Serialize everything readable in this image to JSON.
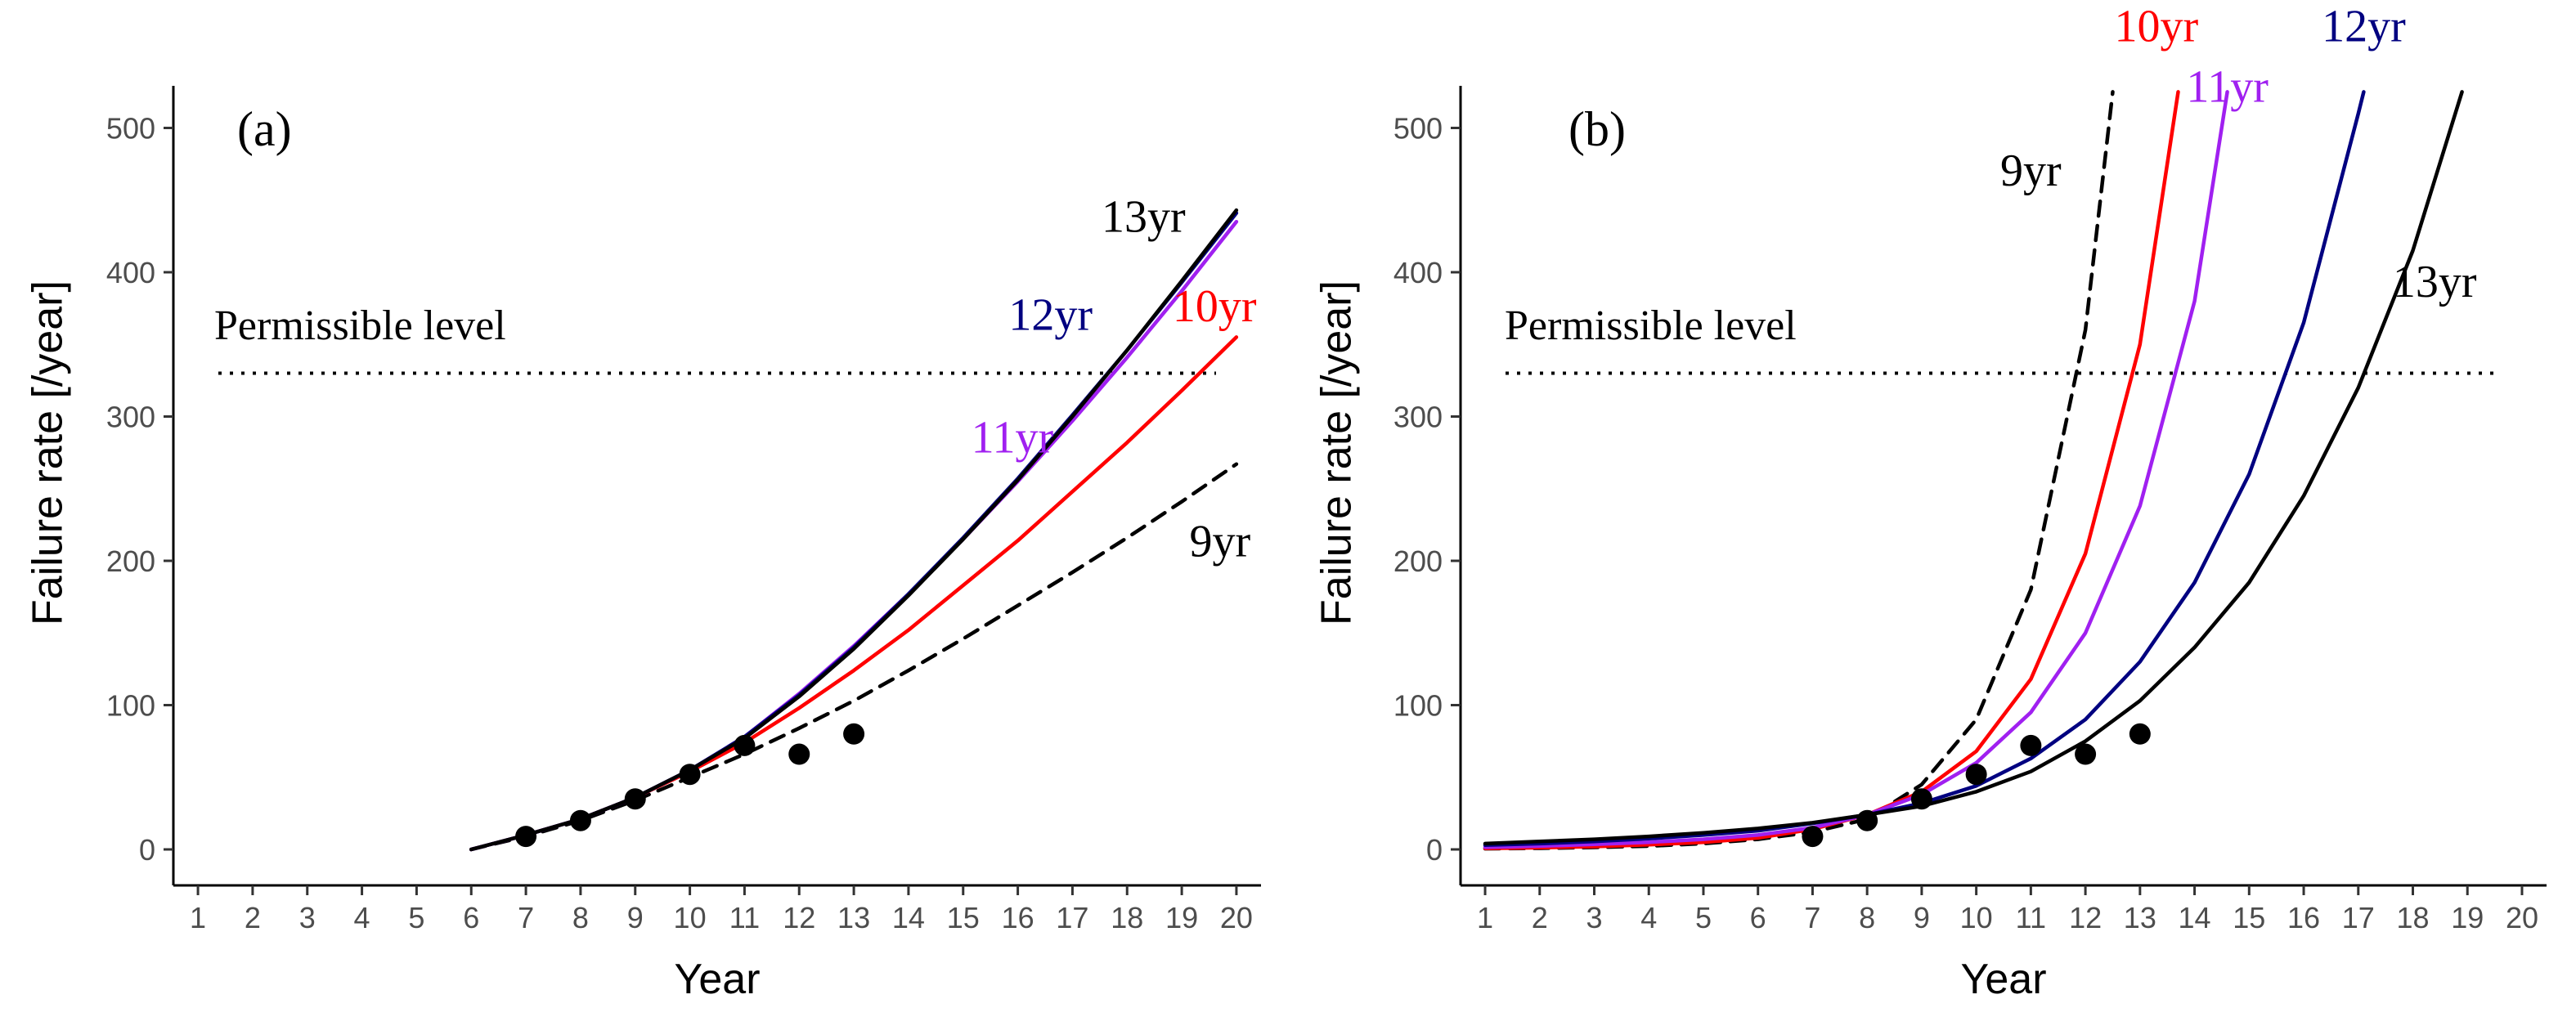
{
  "figure": {
    "domain": "Chart"
  },
  "chart_data": [
    {
      "type": "line",
      "panel": "(a)",
      "xlabel": "Year",
      "ylabel": "Failure rate [/year]",
      "xlim": [
        1,
        20
      ],
      "ylim": [
        0,
        520
      ],
      "xticks": [
        1,
        2,
        3,
        4,
        5,
        6,
        7,
        8,
        9,
        10,
        11,
        12,
        13,
        14,
        15,
        16,
        17,
        18,
        19,
        20
      ],
      "yticks": [
        0,
        100,
        200,
        300,
        400,
        500
      ],
      "grid": false,
      "reference_line": {
        "label": "Permissible level",
        "value": 330,
        "style": "dotted"
      },
      "observed": {
        "x": [
          7,
          8,
          9,
          10,
          11,
          12,
          13
        ],
        "y": [
          9,
          20,
          35,
          52,
          72,
          66,
          80
        ]
      },
      "series": [
        {
          "label": "9yr",
          "color": "#000000",
          "dash": "dashed",
          "x": [
            6,
            7,
            8,
            9,
            10,
            11,
            12,
            13,
            14,
            15,
            16,
            17,
            18,
            19,
            20
          ],
          "y": [
            0,
            9,
            20,
            34,
            50,
            66,
            84,
            103,
            124,
            146,
            169,
            192,
            216,
            241,
            267
          ],
          "label_at": [
            19.7,
            203
          ]
        },
        {
          "label": "10yr",
          "color": "#ff0000",
          "dash": "solid",
          "x": [
            6,
            7,
            8,
            9,
            10,
            11,
            12,
            13,
            14,
            15,
            16,
            17,
            18,
            19,
            20
          ],
          "y": [
            0,
            10,
            21,
            36,
            54,
            74,
            98,
            124,
            152,
            183,
            214,
            248,
            282,
            318,
            355
          ],
          "label_at": [
            19.6,
            366
          ]
        },
        {
          "label": "11yr",
          "color": "#a020f0",
          "dash": "solid",
          "x": [
            6,
            7,
            8,
            9,
            10,
            11,
            12,
            13,
            14,
            15,
            16,
            17,
            18,
            19,
            20
          ],
          "y": [
            0,
            10,
            21,
            36,
            55,
            78,
            108,
            141,
            177,
            215,
            255,
            297,
            341,
            387,
            435
          ],
          "label_at": [
            15.9,
            275
          ]
        },
        {
          "label": "12yr",
          "color": "#000080",
          "dash": "solid",
          "x": [
            6,
            7,
            8,
            9,
            10,
            11,
            12,
            13,
            14,
            15,
            16,
            17,
            18,
            19,
            20
          ],
          "y": [
            0,
            10,
            21,
            36,
            55,
            78,
            107,
            140,
            177,
            216,
            257,
            301,
            346,
            393,
            441
          ],
          "label_at": [
            16.6,
            360
          ]
        },
        {
          "label": "13yr",
          "color": "#000000",
          "dash": "solid",
          "x": [
            6,
            7,
            8,
            9,
            10,
            11,
            12,
            13,
            14,
            15,
            16,
            17,
            18,
            19,
            20
          ],
          "y": [
            0,
            10,
            21,
            36,
            55,
            77,
            106,
            139,
            176,
            215,
            256,
            300,
            346,
            394,
            443
          ],
          "label_at": [
            18.3,
            428
          ]
        }
      ]
    },
    {
      "type": "line",
      "panel": "(b)",
      "xlabel": "Year",
      "ylabel": "Failure rate [/year]",
      "xlim": [
        1,
        20
      ],
      "ylim": [
        0,
        520
      ],
      "xticks": [
        1,
        2,
        3,
        4,
        5,
        6,
        7,
        8,
        9,
        10,
        11,
        12,
        13,
        14,
        15,
        16,
        17,
        18,
        19,
        20
      ],
      "yticks": [
        0,
        100,
        200,
        300,
        400,
        500
      ],
      "grid": false,
      "reference_line": {
        "label": "Permissible level",
        "value": 330,
        "style": "dotted"
      },
      "observed": {
        "x": [
          7,
          8,
          9,
          10,
          11,
          12,
          13
        ],
        "y": [
          9,
          20,
          35,
          52,
          72,
          66,
          80
        ]
      },
      "series": [
        {
          "label": "9yr",
          "color": "#000000",
          "dash": "dashed",
          "x": [
            1,
            2,
            3,
            4,
            5,
            6,
            7,
            8,
            9,
            10,
            11,
            12,
            12.5
          ],
          "y": [
            0.5,
            0.8,
            1.4,
            2.3,
            4,
            7,
            12,
            21,
            45,
            90,
            180,
            360,
            525
          ],
          "label_at": [
            11.0,
            460
          ]
        },
        {
          "label": "10yr",
          "color": "#ff0000",
          "dash": "solid",
          "x": [
            1,
            2,
            3,
            4,
            5,
            6,
            7,
            8,
            9,
            10,
            11,
            12,
            13,
            13.7
          ],
          "y": [
            0.7,
            1.2,
            2,
            3.3,
            5,
            8,
            14,
            24,
            40,
            68,
            118,
            205,
            350,
            525
          ],
          "label_at": [
            13.3,
            560
          ]
        },
        {
          "label": "11yr",
          "color": "#a020f0",
          "dash": "solid",
          "x": [
            1,
            2,
            3,
            4,
            5,
            6,
            7,
            8,
            9,
            10,
            11,
            12,
            13,
            14,
            14.6
          ],
          "y": [
            1.5,
            2.3,
            3.5,
            5,
            7,
            10,
            15,
            24,
            38,
            60,
            95,
            150,
            238,
            380,
            525
          ],
          "label_at": [
            14.6,
            518
          ]
        },
        {
          "label": "12yr",
          "color": "#000080",
          "dash": "solid",
          "x": [
            1,
            2,
            3,
            4,
            5,
            6,
            7,
            8,
            9,
            10,
            11,
            12,
            13,
            14,
            15,
            16,
            17,
            17.1
          ],
          "y": [
            3,
            4,
            5.5,
            7.5,
            10,
            13,
            18,
            24,
            32,
            44,
            63,
            90,
            130,
            185,
            260,
            365,
            510,
            525
          ],
          "label_at": [
            17.1,
            560
          ]
        },
        {
          "label": "13yr",
          "color": "#000000",
          "dash": "solid",
          "x": [
            1,
            2,
            3,
            4,
            5,
            6,
            7,
            8,
            9,
            10,
            11,
            12,
            13,
            14,
            15,
            16,
            17,
            18,
            18.9
          ],
          "y": [
            4,
            5.5,
            7,
            9,
            11.5,
            14.5,
            18.5,
            24,
            30,
            40,
            54,
            75,
            103,
            140,
            185,
            245,
            320,
            415,
            525
          ],
          "label_at": [
            18.4,
            383
          ]
        }
      ]
    }
  ]
}
